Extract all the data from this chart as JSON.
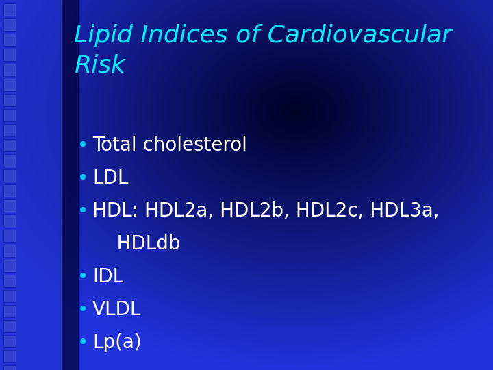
{
  "title_line1": "Lipid Indices of Cardiovascular",
  "title_line2": "Risk",
  "title_color": "#00EEFF",
  "bullet_color": "#FFFFFF",
  "bullet_dot_color": "#00CCFF",
  "bullet_items": [
    "Total cholesterol",
    "LDL",
    "HDL: HDL2a, HDL2b, HDL2c, HDL3a,",
    "HDLdb",
    "IDL",
    "VLDL",
    "Lp(a)"
  ],
  "bullet_flags": [
    true,
    true,
    true,
    false,
    true,
    true,
    true
  ],
  "bg_color_center": "#000033",
  "bg_color_edge": "#2233DD",
  "left_strip_color": "#3344EE",
  "title_fontsize": 26,
  "bullet_fontsize": 20,
  "fig_width": 7.2,
  "fig_height": 5.4,
  "dpi": 100
}
